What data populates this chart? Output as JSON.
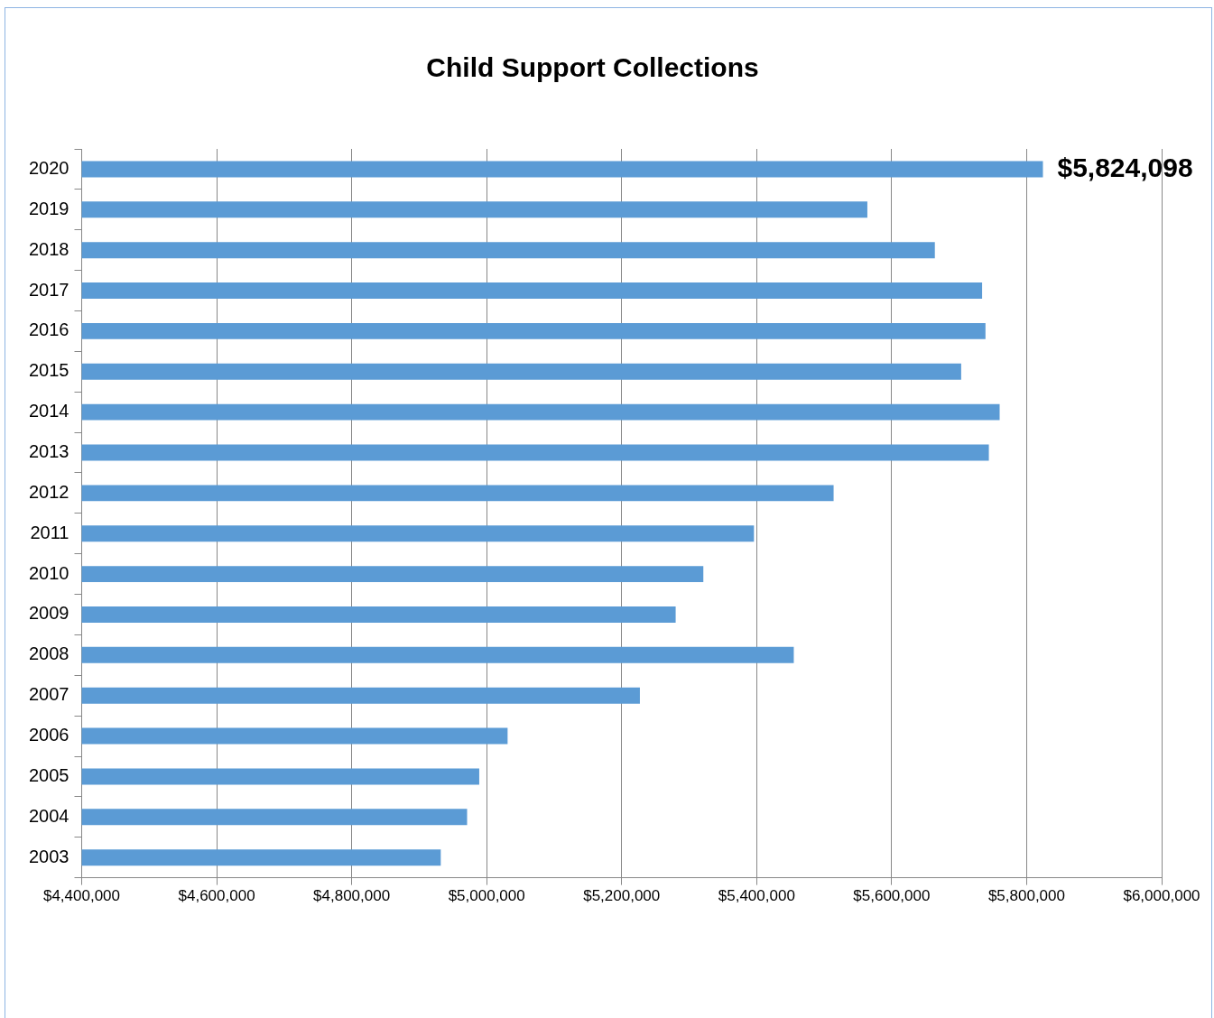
{
  "chart_data": {
    "type": "bar",
    "orientation": "horizontal",
    "title": "Child Support Collections",
    "categories": [
      "2020",
      "2019",
      "2018",
      "2017",
      "2016",
      "2015",
      "2014",
      "2013",
      "2012",
      "2011",
      "2010",
      "2009",
      "2008",
      "2007",
      "2006",
      "2005",
      "2004",
      "2003"
    ],
    "values": [
      5824098,
      5564000,
      5664000,
      5734000,
      5739000,
      5703000,
      5760000,
      5744000,
      5514000,
      5396000,
      5321000,
      5280000,
      5455000,
      5227000,
      5031000,
      4989000,
      4971000,
      4932000
    ],
    "value_labels": [
      "$5,824,098",
      null,
      null,
      null,
      null,
      null,
      null,
      null,
      null,
      null,
      null,
      null,
      null,
      null,
      null,
      null,
      null,
      null
    ],
    "color": "#5b9bd5",
    "xlim": [
      4400000,
      6000000
    ],
    "xticks": [
      {
        "value": 4400000,
        "label": "$4,400,000"
      },
      {
        "value": 4600000,
        "label": "$4,600,000"
      },
      {
        "value": 4800000,
        "label": "$4,800,000"
      },
      {
        "value": 5000000,
        "label": "$5,000,000"
      },
      {
        "value": 5200000,
        "label": "$5,200,000"
      },
      {
        "value": 5400000,
        "label": "$5,400,000"
      },
      {
        "value": 5600000,
        "label": "$5,600,000"
      },
      {
        "value": 5800000,
        "label": "$5,800,000"
      },
      {
        "value": 6000000,
        "label": "$6,000,000"
      }
    ],
    "grid": "x"
  }
}
